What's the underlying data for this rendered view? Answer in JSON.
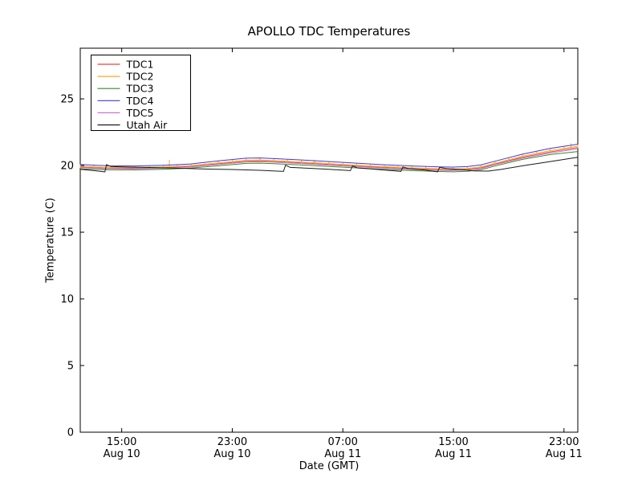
{
  "chart_data": {
    "type": "line",
    "title": "APOLLO TDC Temperatures",
    "xlabel": "Date (GMT)",
    "ylabel": "Temperature (C)",
    "ylim": [
      0,
      28.8
    ],
    "yticks": [
      0,
      5,
      10,
      15,
      20,
      25
    ],
    "x_domain_hours": [
      0,
      36
    ],
    "xticks": [
      {
        "hour": 3,
        "time": "15:00",
        "date": "Aug 10"
      },
      {
        "hour": 11,
        "time": "23:00",
        "date": "Aug 10"
      },
      {
        "hour": 19,
        "time": "07:00",
        "date": "Aug 11"
      },
      {
        "hour": 27,
        "time": "15:00",
        "date": "Aug 11"
      },
      {
        "hour": 35,
        "time": "23:00",
        "date": "Aug 11"
      }
    ],
    "grid": false,
    "legend_position": "upper left",
    "background_color": "#ffffff",
    "axis_color": "#000000",
    "series": [
      {
        "name": "TDC1",
        "color": "#e8453c",
        "points": [
          [
            0,
            19.88
          ],
          [
            2,
            19.8
          ],
          [
            4,
            19.79
          ],
          [
            6,
            19.84
          ],
          [
            8,
            19.93
          ],
          [
            10,
            20.13
          ],
          [
            12,
            20.32
          ],
          [
            13,
            20.34
          ],
          [
            14,
            20.3
          ],
          [
            16,
            20.2
          ],
          [
            18,
            20.08
          ],
          [
            20,
            19.96
          ],
          [
            22,
            19.85
          ],
          [
            24,
            19.76
          ],
          [
            26,
            19.69
          ],
          [
            27,
            19.67
          ],
          [
            28,
            19.71
          ],
          [
            29,
            19.83
          ],
          [
            30,
            20.1
          ],
          [
            32,
            20.62
          ],
          [
            34,
            21.02
          ],
          [
            36,
            21.35
          ]
        ]
      },
      {
        "name": "TDC2",
        "color": "#ffa81f",
        "marker": "vtick",
        "spikes": [
          [
            6.45,
            0.5
          ],
          [
            16.9,
            0.2
          ],
          [
            35.5,
            0.3
          ]
        ],
        "points": [
          [
            0,
            19.95
          ],
          [
            2,
            19.86
          ],
          [
            4,
            19.85
          ],
          [
            6,
            19.9
          ],
          [
            8,
            20.0
          ],
          [
            10,
            20.2
          ],
          [
            12,
            20.4
          ],
          [
            13,
            20.42
          ],
          [
            14,
            20.37
          ],
          [
            16,
            20.27
          ],
          [
            18,
            20.15
          ],
          [
            20,
            20.03
          ],
          [
            22,
            19.92
          ],
          [
            24,
            19.83
          ],
          [
            26,
            19.76
          ],
          [
            27,
            19.74
          ],
          [
            28,
            19.78
          ],
          [
            29,
            19.9
          ],
          [
            30,
            20.17
          ],
          [
            32,
            20.7
          ],
          [
            34,
            21.12
          ],
          [
            36,
            21.45
          ]
        ]
      },
      {
        "name": "TDC3",
        "color": "#338a33",
        "points": [
          [
            0,
            19.75
          ],
          [
            2,
            19.68
          ],
          [
            4,
            19.67
          ],
          [
            6,
            19.72
          ],
          [
            8,
            19.81
          ],
          [
            10,
            19.98
          ],
          [
            12,
            20.16
          ],
          [
            13,
            20.18
          ],
          [
            14,
            20.14
          ],
          [
            16,
            20.04
          ],
          [
            18,
            19.93
          ],
          [
            20,
            19.82
          ],
          [
            22,
            19.71
          ],
          [
            24,
            19.62
          ],
          [
            26,
            19.55
          ],
          [
            27,
            19.53
          ],
          [
            28,
            19.57
          ],
          [
            29,
            19.69
          ],
          [
            30,
            19.96
          ],
          [
            32,
            20.46
          ],
          [
            34,
            20.82
          ],
          [
            36,
            21.05
          ]
        ]
      },
      {
        "name": "TDC4",
        "color": "#3a3ae0",
        "points": [
          [
            0,
            20.08
          ],
          [
            2,
            19.98
          ],
          [
            4,
            19.97
          ],
          [
            6,
            20.02
          ],
          [
            8,
            20.12
          ],
          [
            10,
            20.35
          ],
          [
            12,
            20.55
          ],
          [
            13,
            20.57
          ],
          [
            14,
            20.52
          ],
          [
            16,
            20.42
          ],
          [
            18,
            20.3
          ],
          [
            20,
            20.18
          ],
          [
            22,
            20.06
          ],
          [
            24,
            19.97
          ],
          [
            26,
            19.9
          ],
          [
            27,
            19.88
          ],
          [
            28,
            19.92
          ],
          [
            29,
            20.05
          ],
          [
            30,
            20.32
          ],
          [
            32,
            20.85
          ],
          [
            34,
            21.28
          ],
          [
            36,
            21.6
          ]
        ]
      },
      {
        "name": "TDC5",
        "color": "#c877d2",
        "points": [
          [
            0,
            19.84
          ],
          [
            2,
            19.76
          ],
          [
            4,
            19.75
          ],
          [
            6,
            19.8
          ],
          [
            8,
            19.89
          ],
          [
            10,
            20.08
          ],
          [
            12,
            20.27
          ],
          [
            13,
            20.29
          ],
          [
            14,
            20.25
          ],
          [
            16,
            20.15
          ],
          [
            18,
            20.03
          ],
          [
            20,
            19.91
          ],
          [
            22,
            19.8
          ],
          [
            24,
            19.71
          ],
          [
            26,
            19.64
          ],
          [
            27,
            19.62
          ],
          [
            28,
            19.66
          ],
          [
            29,
            19.78
          ],
          [
            30,
            20.05
          ],
          [
            32,
            20.55
          ],
          [
            34,
            20.94
          ],
          [
            36,
            21.25
          ]
        ]
      },
      {
        "name": "Utah Air",
        "color": "#1a1a1a",
        "points": [
          [
            0,
            19.72
          ],
          [
            1,
            19.62
          ],
          [
            1.78,
            19.52
          ],
          [
            1.9,
            20.07
          ],
          [
            2.2,
            19.93
          ],
          [
            3,
            19.9
          ],
          [
            5,
            19.85
          ],
          [
            7,
            19.8
          ],
          [
            9,
            19.74
          ],
          [
            11,
            19.7
          ],
          [
            13,
            19.64
          ],
          [
            14.7,
            19.56
          ],
          [
            14.85,
            20.02
          ],
          [
            15.2,
            19.86
          ],
          [
            16,
            19.82
          ],
          [
            18,
            19.72
          ],
          [
            19.55,
            19.62
          ],
          [
            19.7,
            19.97
          ],
          [
            20.05,
            19.82
          ],
          [
            21,
            19.75
          ],
          [
            23.2,
            19.56
          ],
          [
            23.35,
            19.9
          ],
          [
            23.7,
            19.78
          ],
          [
            25,
            19.66
          ],
          [
            25.85,
            19.53
          ],
          [
            26,
            19.86
          ],
          [
            26.5,
            19.78
          ],
          [
            27.5,
            19.7
          ],
          [
            28.5,
            19.6
          ],
          [
            29.5,
            19.58
          ],
          [
            30.5,
            19.72
          ],
          [
            32,
            19.98
          ],
          [
            34,
            20.3
          ],
          [
            36,
            20.62
          ]
        ]
      }
    ]
  }
}
